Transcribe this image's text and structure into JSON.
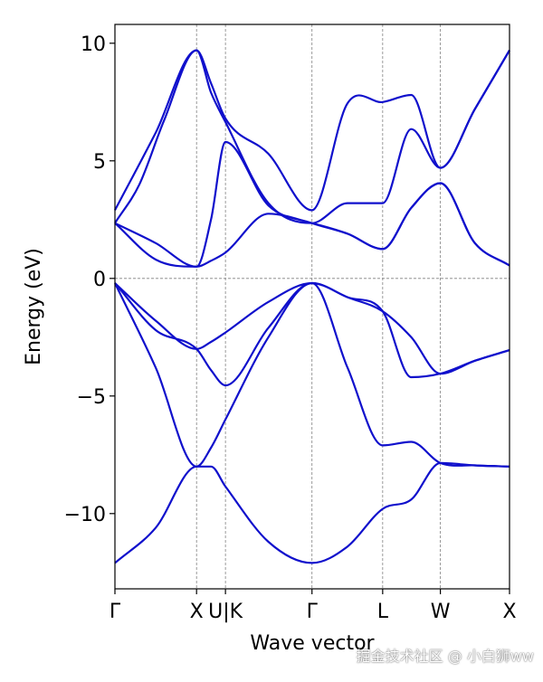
{
  "chart_data": {
    "type": "line",
    "title": "",
    "xlabel": "Wave vector",
    "ylabel": "Energy (eV)",
    "ylim": [
      -13.2,
      10.8
    ],
    "xlim": [
      0,
      4.834
    ],
    "grid": "dashed vertical lines at high-symmetry points, dashed horizontal line at 0",
    "line_color": "#1010cc",
    "axis_color": "#000000",
    "grid_color": "#808080",
    "yticks": [
      -10,
      -5,
      0,
      5,
      10
    ],
    "ytick_labels": [
      "−10",
      "−5",
      "0",
      "5",
      "10"
    ],
    "kpoints": [
      {
        "label": "Γ",
        "x": 0
      },
      {
        "label": "X",
        "x": 1.0
      },
      {
        "label": "U|K",
        "x": 1.354
      },
      {
        "label": "Γ",
        "x": 2.414
      },
      {
        "label": "L",
        "x": 3.28
      },
      {
        "label": "W",
        "x": 3.987
      },
      {
        "label": "X",
        "x": 4.834
      }
    ],
    "series": [
      {
        "values": [
          [
            0,
            -12.1
          ],
          [
            0.5,
            -10.6
          ],
          [
            1.0,
            -8.0
          ],
          [
            1.177,
            -8.0
          ],
          [
            1.354,
            -8.85
          ],
          [
            1.88,
            -11.2
          ],
          [
            2.414,
            -12.1
          ],
          [
            2.85,
            -11.4
          ],
          [
            3.28,
            -9.8
          ],
          [
            3.63,
            -9.4
          ],
          [
            3.987,
            -7.85
          ],
          [
            4.41,
            -7.95
          ],
          [
            4.834,
            -8.0
          ]
        ]
      },
      {
        "values": [
          [
            0,
            -0.2
          ],
          [
            0.5,
            -3.8
          ],
          [
            1.0,
            -8.0
          ],
          [
            1.177,
            -7.2
          ],
          [
            1.354,
            -6.0
          ],
          [
            1.88,
            -2.5
          ],
          [
            2.414,
            -0.2
          ],
          [
            2.85,
            -3.8
          ],
          [
            3.28,
            -7.1
          ],
          [
            3.63,
            -6.95
          ],
          [
            3.987,
            -7.85
          ],
          [
            4.41,
            -7.95
          ],
          [
            4.834,
            -8.0
          ]
        ]
      },
      {
        "values": [
          [
            0,
            -0.2
          ],
          [
            0.5,
            -2.2
          ],
          [
            1.0,
            -3.0
          ],
          [
            1.177,
            -3.9
          ],
          [
            1.354,
            -4.55
          ],
          [
            1.88,
            -2.1
          ],
          [
            2.414,
            -0.2
          ],
          [
            2.85,
            -0.8
          ],
          [
            3.28,
            -1.4
          ],
          [
            3.63,
            -4.2
          ],
          [
            3.987,
            -4.05
          ],
          [
            4.41,
            -3.5
          ],
          [
            4.834,
            -3.05
          ]
        ]
      },
      {
        "values": [
          [
            0,
            -0.2
          ],
          [
            0.5,
            -1.8
          ],
          [
            1.0,
            -3.0
          ],
          [
            1.177,
            -2.7
          ],
          [
            1.354,
            -2.3
          ],
          [
            1.88,
            -1.0
          ],
          [
            2.414,
            -0.2
          ],
          [
            2.85,
            -0.8
          ],
          [
            3.28,
            -1.4
          ],
          [
            3.63,
            -2.5
          ],
          [
            3.987,
            -4.05
          ],
          [
            4.41,
            -3.5
          ],
          [
            4.834,
            -3.05
          ]
        ]
      },
      {
        "values": [
          [
            0,
            2.35
          ],
          [
            0.5,
            1.5
          ],
          [
            1.0,
            0.5
          ],
          [
            1.177,
            0.75
          ],
          [
            1.354,
            1.1
          ],
          [
            1.88,
            2.75
          ],
          [
            2.414,
            2.35
          ],
          [
            2.85,
            1.9
          ],
          [
            3.28,
            1.25
          ],
          [
            3.63,
            3.0
          ],
          [
            3.987,
            4.05
          ],
          [
            4.41,
            1.5
          ],
          [
            4.834,
            0.55
          ]
        ]
      },
      {
        "values": [
          [
            0,
            2.35
          ],
          [
            0.5,
            0.8
          ],
          [
            1.0,
            0.5
          ],
          [
            1.177,
            2.5
          ],
          [
            1.354,
            5.8
          ],
          [
            1.88,
            3.1
          ],
          [
            2.414,
            2.35
          ],
          [
            2.85,
            1.9
          ],
          [
            3.28,
            1.25
          ],
          [
            3.63,
            3.0
          ],
          [
            3.987,
            4.05
          ],
          [
            4.41,
            1.5
          ],
          [
            4.834,
            0.55
          ]
        ]
      },
      {
        "values": [
          [
            0,
            2.35
          ],
          [
            0.3,
            4.0
          ],
          [
            0.6,
            6.7
          ],
          [
            1.0,
            9.7
          ],
          [
            1.177,
            7.9
          ],
          [
            1.354,
            6.65
          ],
          [
            1.88,
            3.2
          ],
          [
            2.414,
            2.35
          ],
          [
            2.85,
            3.2
          ],
          [
            3.28,
            3.2
          ],
          [
            3.63,
            6.35
          ],
          [
            3.987,
            4.7
          ],
          [
            4.41,
            7.2
          ],
          [
            4.834,
            9.7
          ]
        ]
      },
      {
        "values": [
          [
            0,
            2.9
          ],
          [
            0.5,
            6.2
          ],
          [
            1.0,
            9.7
          ],
          [
            1.177,
            8.3
          ],
          [
            1.354,
            6.8
          ],
          [
            1.88,
            5.3
          ],
          [
            2.414,
            2.9
          ],
          [
            2.85,
            7.45
          ],
          [
            3.28,
            7.5
          ],
          [
            3.63,
            7.8
          ],
          [
            3.987,
            4.7
          ],
          [
            4.41,
            7.2
          ],
          [
            4.834,
            9.7
          ]
        ]
      }
    ]
  },
  "watermark": "掘金技术社区 @ 小白狮ww"
}
